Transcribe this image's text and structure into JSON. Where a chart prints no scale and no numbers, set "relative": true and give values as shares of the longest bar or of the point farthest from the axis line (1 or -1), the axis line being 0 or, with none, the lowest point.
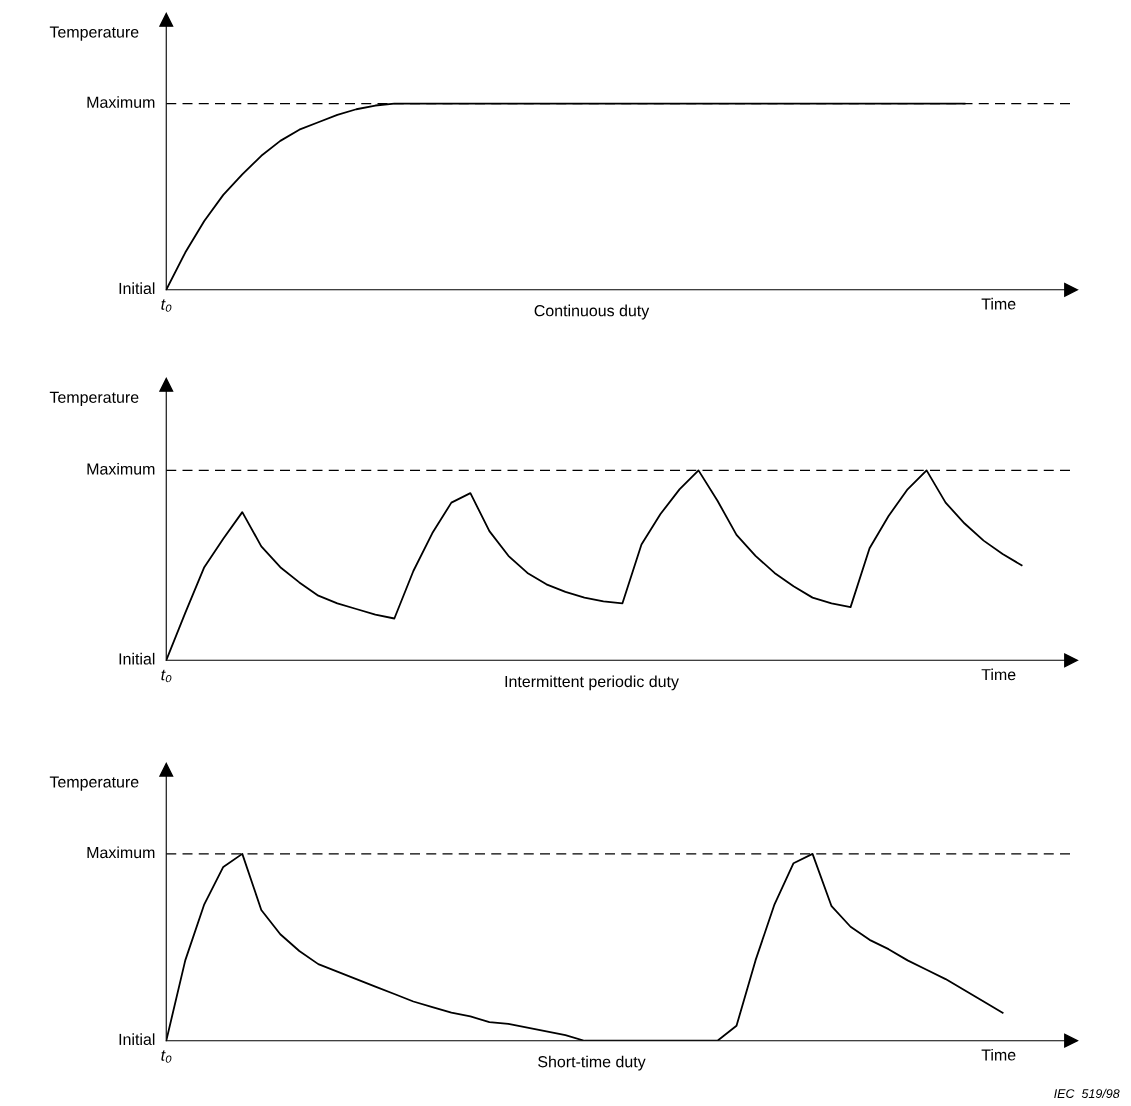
{
  "chart_data": [
    {
      "type": "line",
      "relative": true,
      "title": "Continuous duty",
      "xlabel": "Time",
      "ylabel": "Temperature",
      "line_style": "solid",
      "categories": [
        null,
        null,
        null,
        null,
        null,
        null,
        null,
        null,
        null,
        null,
        null,
        null,
        null,
        null,
        null,
        null,
        null,
        null,
        null,
        null,
        null,
        null,
        null,
        null,
        null,
        null,
        null,
        null,
        null,
        null,
        null,
        null,
        null,
        null,
        null,
        null,
        null,
        null,
        null,
        null,
        null,
        null,
        null
      ],
      "series": [
        {
          "color": "#000000",
          "values": [
            0,
            0.2,
            0.37,
            0.51,
            0.62,
            0.72,
            0.8,
            0.86,
            0.9,
            0.94,
            0.97,
            0.99,
            1,
            1,
            1,
            1,
            1,
            1,
            1,
            1,
            1,
            1,
            1,
            1,
            1,
            1,
            1,
            1,
            1,
            1,
            1,
            1,
            1,
            1,
            1,
            1,
            1,
            1,
            1,
            1,
            1,
            1,
            1
          ]
        }
      ],
      "ref_lines": [
        {
          "axis": "y",
          "value": 1,
          "label": "Maximum",
          "color": "#000000",
          "line_style": "dashed"
        }
      ],
      "annotations": [
        "Initial",
        {
          "text": "t₀",
          "y": 0
        }
      ]
    },
    {
      "type": "line",
      "relative": true,
      "title": "Intermittent periodic duty",
      "xlabel": "Time",
      "ylabel": "Temperature",
      "line_style": "solid",
      "categories": [
        null,
        null,
        null,
        null,
        null,
        null,
        null,
        null,
        null,
        null,
        null,
        null,
        null,
        null,
        null,
        null,
        null,
        null,
        null,
        null,
        null,
        null,
        null,
        null,
        null,
        null,
        null,
        null,
        null,
        null,
        null,
        null,
        null,
        null,
        null,
        null,
        null,
        null,
        null,
        null,
        null,
        null,
        null,
        null,
        null,
        null
      ],
      "series": [
        {
          "color": "#000000",
          "values": [
            0,
            0.25,
            0.49,
            0.64,
            0.78,
            0.6,
            0.49,
            0.41,
            0.34,
            0.3,
            0.27,
            0.24,
            0.22,
            0.47,
            0.67,
            0.83,
            0.88,
            0.68,
            0.55,
            0.46,
            0.4,
            0.36,
            0.33,
            0.31,
            0.3,
            0.61,
            0.77,
            0.9,
            1,
            0.84,
            0.66,
            0.55,
            0.46,
            0.39,
            0.33,
            0.3,
            0.28,
            0.59,
            0.76,
            0.9,
            1,
            0.83,
            0.72,
            0.63,
            0.56,
            0.5
          ]
        }
      ],
      "ref_lines": [
        {
          "axis": "y",
          "value": 1,
          "label": "Maximum",
          "color": "#000000",
          "line_style": "dashed"
        }
      ],
      "annotations": [
        "Initial",
        {
          "text": "t₀",
          "y": 0
        }
      ]
    },
    {
      "type": "line",
      "relative": true,
      "title": "Short-time duty",
      "xlabel": "Time",
      "ylabel": "Temperature",
      "line_style": "solid",
      "categories": [
        null,
        null,
        null,
        null,
        null,
        null,
        null,
        null,
        null,
        null,
        null,
        null,
        null,
        null,
        null,
        null,
        null,
        null,
        null,
        null,
        null,
        null,
        null,
        null,
        null,
        null,
        null,
        null,
        null,
        null,
        null,
        null,
        null,
        null,
        null,
        null,
        null,
        null,
        null,
        null,
        null,
        null,
        null,
        null,
        null
      ],
      "series": [
        {
          "color": "#000000",
          "values": [
            0,
            0.43,
            0.73,
            0.93,
            1,
            0.7,
            0.57,
            0.48,
            0.41,
            0.37,
            0.33,
            0.29,
            0.25,
            0.21,
            0.18,
            0.15,
            0.13,
            0.1,
            0.09,
            0.07,
            0.05,
            0.03,
            0,
            0,
            0,
            0,
            0,
            0,
            0,
            0,
            0.08,
            0.43,
            0.73,
            0.95,
            1,
            0.72,
            0.61,
            0.54,
            0.49,
            0.43,
            0.38,
            0.33,
            0.27,
            0.21,
            0.15
          ]
        }
      ],
      "ref_lines": [
        {
          "axis": "y",
          "value": 1,
          "label": "Maximum",
          "color": "#000000",
          "line_style": "dashed"
        }
      ],
      "annotations": [
        "Initial",
        {
          "text": "t₀",
          "y": 0
        },
        "IEC  519/98"
      ]
    }
  ]
}
